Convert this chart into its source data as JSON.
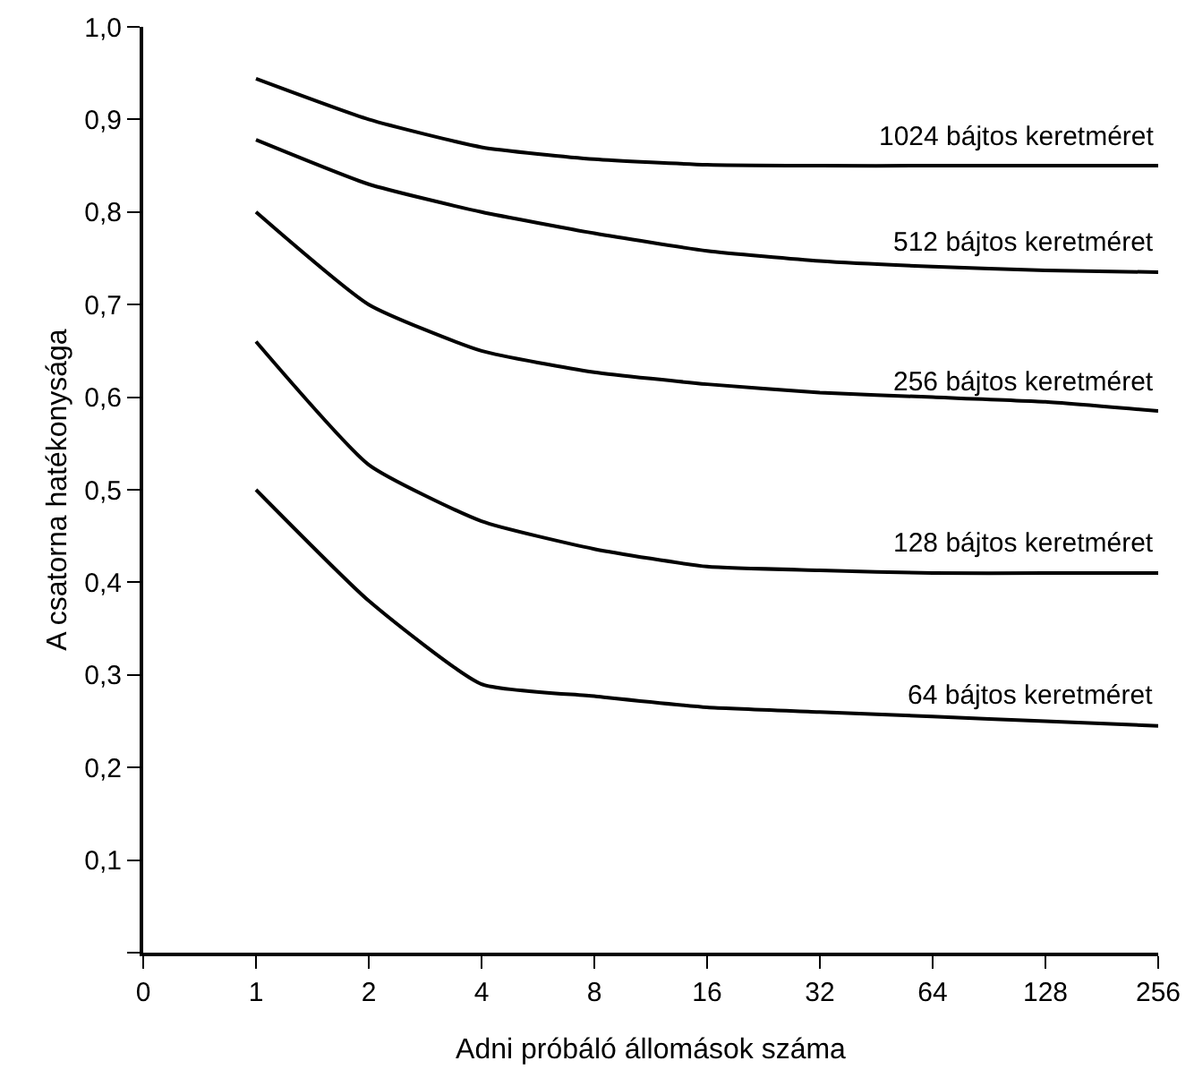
{
  "chart_data": {
    "type": "line",
    "xlabel": "Adni próbáló állomások száma",
    "ylabel": "A csatorna hatékonysága",
    "log": "x",
    "x": [
      1,
      2,
      4,
      8,
      16,
      32,
      64,
      128,
      256
    ],
    "series": [
      {
        "name": "1024 bájtos keretméret",
        "color": "#000000",
        "values": [
          0.944,
          0.9,
          0.87,
          0.857,
          0.851,
          0.85,
          0.85,
          0.85,
          0.85
        ]
      },
      {
        "name": "512 bájtos keretméret",
        "color": "#000000",
        "values": [
          0.878,
          0.83,
          0.8,
          0.777,
          0.758,
          0.747,
          0.741,
          0.737,
          0.735
        ]
      },
      {
        "name": "256 bájtos keretméret",
        "color": "#000000",
        "values": [
          0.8,
          0.7,
          0.65,
          0.627,
          0.614,
          0.605,
          0.6,
          0.595,
          0.585
        ]
      },
      {
        "name": "128 bájtos keretméret",
        "color": "#000000",
        "values": [
          0.66,
          0.527,
          0.466,
          0.436,
          0.417,
          0.413,
          0.41,
          0.41,
          0.41
        ]
      },
      {
        "name": "64 bájtos keretméret",
        "color": "#000000",
        "values": [
          0.5,
          0.38,
          0.29,
          0.277,
          0.265,
          0.26,
          0.255,
          0.25,
          0.245
        ]
      }
    ],
    "xlim": [
      0.5,
      256
    ],
    "xticks": [
      {
        "value": 0.5,
        "label": "0"
      },
      1,
      2,
      4,
      8,
      16,
      32,
      64,
      128,
      256
    ],
    "ylim": [
      0,
      1
    ],
    "yticks": [
      {
        "value": 0,
        "label": null
      },
      {
        "value": 0.1,
        "label": "0,1"
      },
      {
        "value": 0.2,
        "label": "0,2"
      },
      {
        "value": 0.3,
        "label": "0,3"
      },
      {
        "value": 0.4,
        "label": "0,4"
      },
      {
        "value": 0.5,
        "label": "0,5"
      },
      {
        "value": 0.6,
        "label": "0,6"
      },
      {
        "value": 0.7,
        "label": "0,7"
      },
      {
        "value": 0.8,
        "label": "0,8"
      },
      {
        "value": 0.9,
        "label": "0,9"
      },
      {
        "value": 1,
        "label": "1,0"
      }
    ],
    "grid": false,
    "legend": false,
    "marker": "none",
    "line_style": "solid"
  }
}
